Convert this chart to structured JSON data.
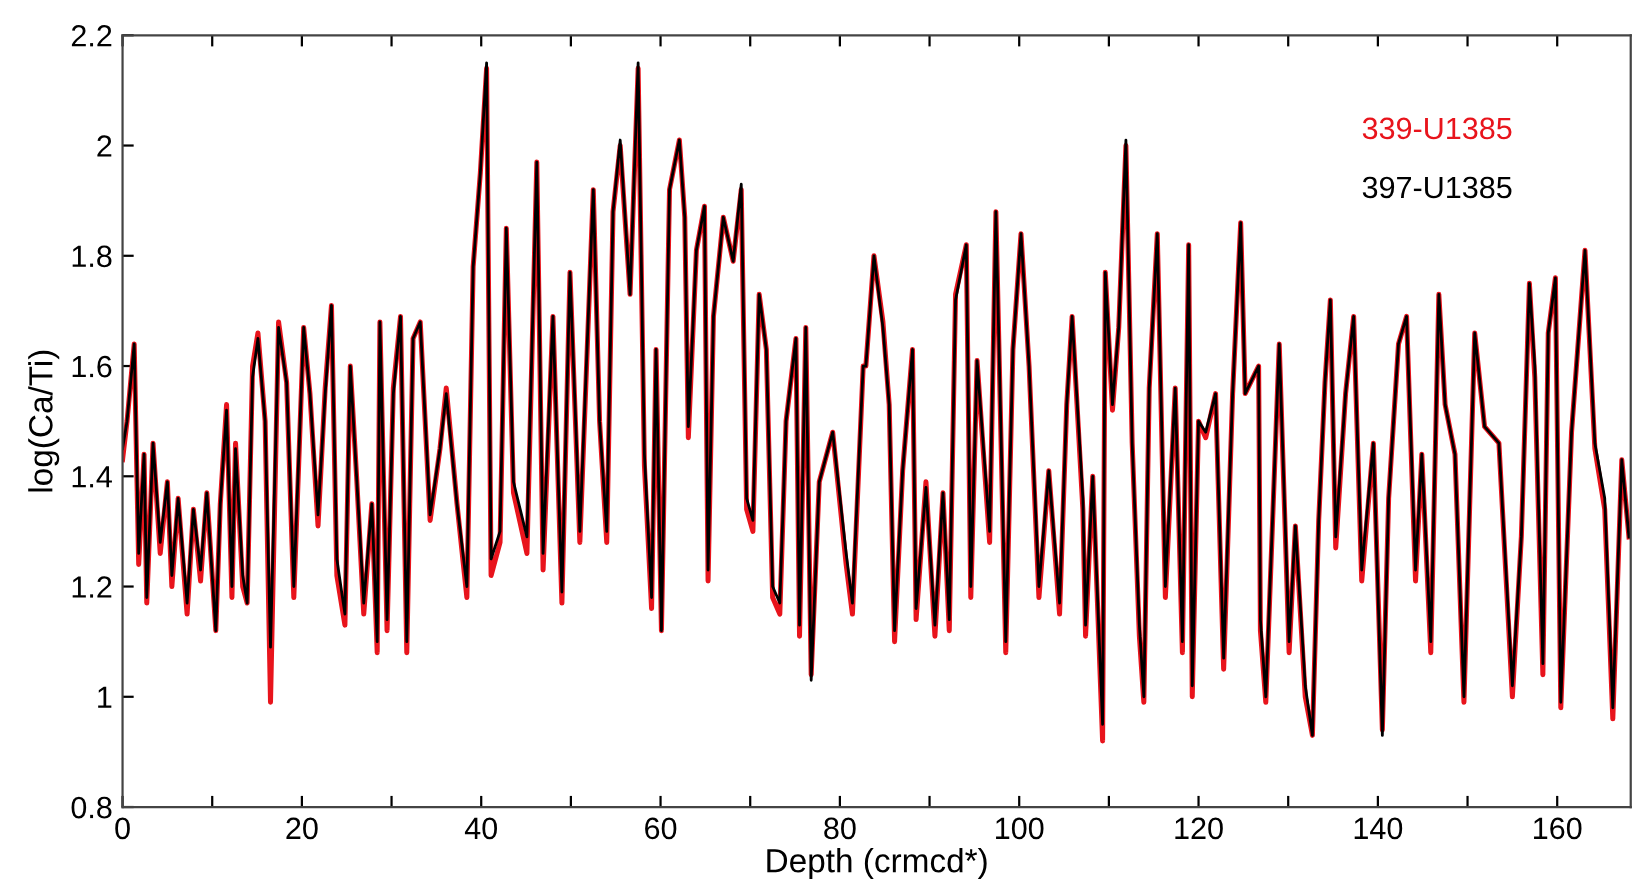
{
  "chart_data": {
    "type": "line",
    "xlabel": "Depth (crmcd*)",
    "ylabel": "log(Ca/Ti)",
    "xlim": [
      0,
      168.2
    ],
    "ylim": [
      0.8,
      2.2
    ],
    "xticks": [
      0,
      {
        "value": 10,
        "label": null
      },
      20,
      {
        "value": 30,
        "label": null
      },
      40,
      {
        "value": 50,
        "label": null
      },
      60,
      {
        "value": 70,
        "label": null
      },
      80,
      {
        "value": 90,
        "label": null
      },
      100,
      {
        "value": 110,
        "label": null
      },
      120,
      {
        "value": 130,
        "label": null
      },
      140,
      {
        "value": 150,
        "label": null
      },
      160
    ],
    "yticks": [
      0.8,
      1,
      1.2,
      1.4,
      1.6,
      1.8,
      2,
      2.2
    ],
    "grid": false,
    "legend": "top right",
    "marker": "none",
    "line_style": "solid",
    "x": [
      0,
      0.5,
      1.3,
      1.8,
      2.4,
      2.7,
      3.4,
      4.2,
      5.0,
      5.5,
      6.2,
      7.2,
      7.9,
      8.7,
      9.4,
      10.4,
      10.9,
      11.6,
      12.2,
      12.6,
      13.4,
      13.9,
      14.5,
      15.1,
      15.9,
      16.5,
      17.4,
      18.3,
      19.1,
      20.2,
      20.9,
      21.8,
      22.6,
      23.3,
      23.9,
      24.8,
      25.4,
      26.1,
      26.9,
      27.8,
      28.4,
      28.7,
      29.5,
      30.2,
      31.0,
      31.7,
      32.4,
      33.2,
      34.3,
      35.4,
      36.1,
      37.3,
      38.4,
      39.1,
      39.9,
      40.6,
      41.1,
      42.1,
      42.8,
      43.6,
      45.1,
      46.2,
      46.9,
      48.0,
      49.0,
      49.9,
      51.0,
      52.5,
      53.2,
      54.0,
      54.7,
      55.5,
      56.6,
      57.5,
      58.2,
      59.0,
      59.5,
      60.1,
      61.0,
      62.1,
      62.7,
      63.1,
      64.0,
      64.9,
      65.3,
      65.9,
      67.0,
      68.1,
      69.0,
      69.6,
      70.3,
      71.0,
      71.8,
      72.5,
      73.3,
      74.0,
      75.1,
      75.5,
      76.2,
      76.8,
      77.7,
      79.2,
      80.7,
      81.4,
      82.6,
      82.9,
      83.8,
      84.8,
      85.5,
      86.1,
      87.0,
      88.1,
      88.5,
      89.6,
      90.6,
      91.5,
      92.2,
      92.9,
      94.1,
      94.6,
      95.3,
      96.7,
      97.4,
      98.5,
      99.3,
      100.2,
      101.1,
      102.2,
      103.3,
      104.5,
      105.3,
      105.9,
      107.1,
      107.4,
      108.2,
      109.3,
      109.6,
      110.4,
      111.1,
      111.9,
      112.6,
      113.4,
      113.9,
      114.5,
      115.4,
      116.3,
      117.4,
      118.2,
      118.9,
      119.3,
      120.0,
      120.8,
      121.9,
      122.8,
      123.8,
      124.7,
      125.2,
      126.7,
      126.9,
      127.5,
      129.0,
      130.1,
      130.8,
      131.9,
      132.7,
      133.4,
      134.1,
      134.7,
      135.3,
      136.4,
      137.3,
      138.2,
      139.5,
      140.5,
      141.2,
      142.3,
      143.2,
      144.2,
      144.9,
      145.9,
      146.8,
      147.5,
      148.6,
      149.6,
      150.8,
      151.9,
      153.5,
      155.0,
      156.0,
      156.9,
      157.5,
      158.4,
      159.0,
      159.8,
      160.4,
      161.6,
      163.1,
      164.2,
      165.3,
      166.2,
      167.2,
      168.0
    ],
    "series": [
      {
        "name": "339-U1385",
        "color": "#e8141c",
        "values": [
          1.43,
          1.5,
          1.64,
          1.24,
          1.44,
          1.17,
          1.46,
          1.26,
          1.39,
          1.2,
          1.36,
          1.15,
          1.34,
          1.21,
          1.37,
          1.12,
          1.35,
          1.53,
          1.18,
          1.46,
          1.2,
          1.17,
          1.6,
          1.66,
          1.5,
          0.99,
          1.68,
          1.57,
          1.18,
          1.67,
          1.55,
          1.31,
          1.56,
          1.71,
          1.22,
          1.13,
          1.6,
          1.4,
          1.15,
          1.35,
          1.08,
          1.68,
          1.12,
          1.56,
          1.69,
          1.08,
          1.65,
          1.68,
          1.32,
          1.45,
          1.56,
          1.35,
          1.18,
          1.78,
          1.95,
          2.14,
          1.22,
          1.28,
          1.85,
          1.37,
          1.26,
          1.97,
          1.23,
          1.69,
          1.17,
          1.77,
          1.28,
          1.92,
          1.5,
          1.28,
          1.88,
          2.0,
          1.73,
          2.14,
          1.42,
          1.16,
          1.63,
          1.12,
          1.92,
          2.01,
          1.87,
          1.47,
          1.81,
          1.89,
          1.21,
          1.69,
          1.87,
          1.79,
          1.92,
          1.34,
          1.3,
          1.73,
          1.63,
          1.18,
          1.15,
          1.5,
          1.65,
          1.11,
          1.67,
          1.04,
          1.39,
          1.48,
          1.24,
          1.15,
          1.6,
          1.6,
          1.8,
          1.68,
          1.53,
          1.1,
          1.41,
          1.63,
          1.14,
          1.39,
          1.11,
          1.37,
          1.12,
          1.73,
          1.82,
          1.18,
          1.61,
          1.28,
          1.88,
          1.08,
          1.63,
          1.84,
          1.6,
          1.18,
          1.41,
          1.15,
          1.53,
          1.69,
          1.34,
          1.11,
          1.4,
          0.92,
          1.77,
          1.52,
          1.67,
          2.0,
          1.46,
          1.11,
          0.99,
          1.56,
          1.84,
          1.18,
          1.56,
          1.08,
          1.82,
          1.0,
          1.5,
          1.47,
          1.55,
          1.05,
          1.55,
          1.86,
          1.55,
          1.6,
          1.12,
          0.99,
          1.64,
          1.08,
          1.31,
          1.0,
          0.93,
          1.32,
          1.57,
          1.72,
          1.27,
          1.55,
          1.69,
          1.21,
          1.46,
          0.94,
          1.36,
          1.64,
          1.69,
          1.21,
          1.44,
          1.08,
          1.73,
          1.53,
          1.44,
          0.99,
          1.66,
          1.49,
          1.46,
          1.0,
          1.29,
          1.75,
          1.58,
          1.04,
          1.66,
          1.76,
          0.98,
          1.48,
          1.81,
          1.45,
          1.34,
          0.96,
          1.43,
          1.29
        ]
      },
      {
        "name": "397-U1385",
        "color": "#000000",
        "values": [
          1.45,
          1.5,
          1.64,
          1.26,
          1.44,
          1.18,
          1.46,
          1.28,
          1.39,
          1.22,
          1.36,
          1.17,
          1.34,
          1.23,
          1.37,
          1.12,
          1.35,
          1.52,
          1.2,
          1.45,
          1.22,
          1.17,
          1.58,
          1.65,
          1.5,
          1.09,
          1.67,
          1.57,
          1.2,
          1.67,
          1.55,
          1.33,
          1.55,
          1.71,
          1.25,
          1.15,
          1.6,
          1.4,
          1.17,
          1.35,
          1.1,
          1.68,
          1.14,
          1.55,
          1.69,
          1.1,
          1.65,
          1.68,
          1.33,
          1.45,
          1.55,
          1.35,
          1.2,
          1.78,
          1.95,
          2.15,
          1.25,
          1.3,
          1.85,
          1.39,
          1.29,
          1.97,
          1.26,
          1.69,
          1.19,
          1.77,
          1.3,
          1.92,
          1.5,
          1.3,
          1.88,
          2.01,
          1.73,
          2.15,
          1.44,
          1.18,
          1.63,
          1.12,
          1.92,
          2.01,
          1.87,
          1.49,
          1.81,
          1.89,
          1.23,
          1.69,
          1.87,
          1.79,
          1.93,
          1.36,
          1.32,
          1.73,
          1.63,
          1.2,
          1.17,
          1.5,
          1.65,
          1.13,
          1.67,
          1.03,
          1.39,
          1.48,
          1.26,
          1.17,
          1.6,
          1.6,
          1.8,
          1.67,
          1.53,
          1.12,
          1.41,
          1.63,
          1.16,
          1.38,
          1.13,
          1.37,
          1.14,
          1.72,
          1.82,
          1.2,
          1.61,
          1.3,
          1.88,
          1.1,
          1.63,
          1.84,
          1.6,
          1.2,
          1.41,
          1.17,
          1.53,
          1.69,
          1.36,
          1.13,
          1.4,
          0.95,
          1.77,
          1.53,
          1.67,
          2.01,
          1.46,
          1.13,
          1.0,
          1.56,
          1.84,
          1.2,
          1.56,
          1.1,
          1.82,
          1.02,
          1.5,
          1.48,
          1.55,
          1.07,
          1.55,
          1.86,
          1.55,
          1.6,
          1.14,
          1.0,
          1.64,
          1.1,
          1.31,
          1.02,
          0.93,
          1.32,
          1.57,
          1.72,
          1.29,
          1.55,
          1.69,
          1.23,
          1.46,
          0.93,
          1.36,
          1.64,
          1.69,
          1.23,
          1.44,
          1.1,
          1.73,
          1.53,
          1.44,
          1.0,
          1.66,
          1.49,
          1.46,
          1.02,
          1.29,
          1.75,
          1.6,
          1.06,
          1.66,
          1.76,
          0.99,
          1.48,
          1.81,
          1.46,
          1.36,
          0.98,
          1.43,
          1.29
        ]
      }
    ]
  }
}
